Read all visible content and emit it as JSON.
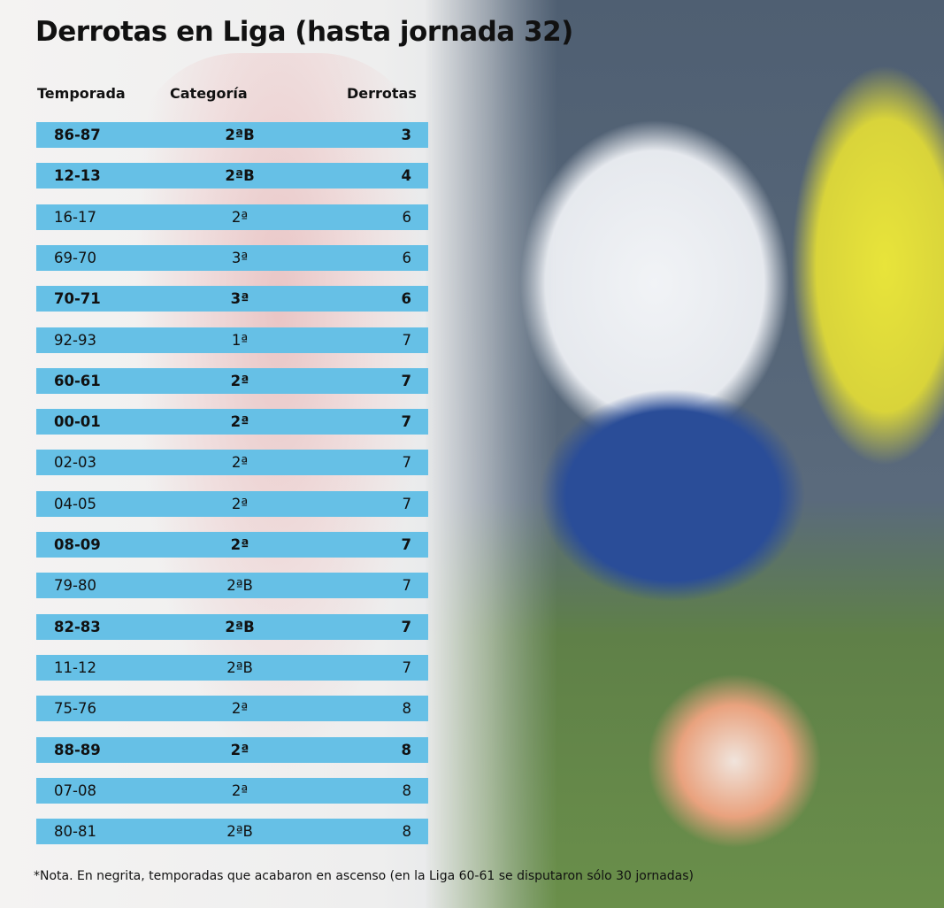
{
  "title": "Derrotas en Liga (hasta jornada 32)",
  "chart_data": {
    "type": "table",
    "title": "Derrotas en Liga (hasta jornada 32)",
    "columns": [
      "Temporada",
      "Categoría",
      "Derrotas"
    ],
    "rows": [
      {
        "season": "86-87",
        "category": "2ªB",
        "losses": 3,
        "promotion": true
      },
      {
        "season": "12-13",
        "category": "2ªB",
        "losses": 4,
        "promotion": true
      },
      {
        "season": "16-17",
        "category": "2ª",
        "losses": 6,
        "promotion": false
      },
      {
        "season": "69-70",
        "category": "3ª",
        "losses": 6,
        "promotion": false
      },
      {
        "season": "70-71",
        "category": "3ª",
        "losses": 6,
        "promotion": true
      },
      {
        "season": "92-93",
        "category": "1ª",
        "losses": 7,
        "promotion": false
      },
      {
        "season": "60-61",
        "category": "2ª",
        "losses": 7,
        "promotion": true
      },
      {
        "season": "00-01",
        "category": "2ª",
        "losses": 7,
        "promotion": true
      },
      {
        "season": "02-03",
        "category": "2ª",
        "losses": 7,
        "promotion": false
      },
      {
        "season": "04-05",
        "category": "2ª",
        "losses": 7,
        "promotion": false
      },
      {
        "season": "08-09",
        "category": "2ª",
        "losses": 7,
        "promotion": true
      },
      {
        "season": "79-80",
        "category": "2ªB",
        "losses": 7,
        "promotion": false
      },
      {
        "season": "82-83",
        "category": "2ªB",
        "losses": 7,
        "promotion": true
      },
      {
        "season": "11-12",
        "category": "2ªB",
        "losses": 7,
        "promotion": false
      },
      {
        "season": "75-76",
        "category": "2ª",
        "losses": 8,
        "promotion": false
      },
      {
        "season": "88-89",
        "category": "2ª",
        "losses": 8,
        "promotion": true
      },
      {
        "season": "07-08",
        "category": "2ª",
        "losses": 8,
        "promotion": false
      },
      {
        "season": "80-81",
        "category": "2ªB",
        "losses": 8,
        "promotion": false
      }
    ]
  },
  "note": "*Nota. En negrita, temporadas que acabaron en ascenso (en la Liga 60-61 se disputaron sólo 30 jornadas)",
  "colors": {
    "row_bar": "#66c0e6",
    "text": "#111111"
  }
}
